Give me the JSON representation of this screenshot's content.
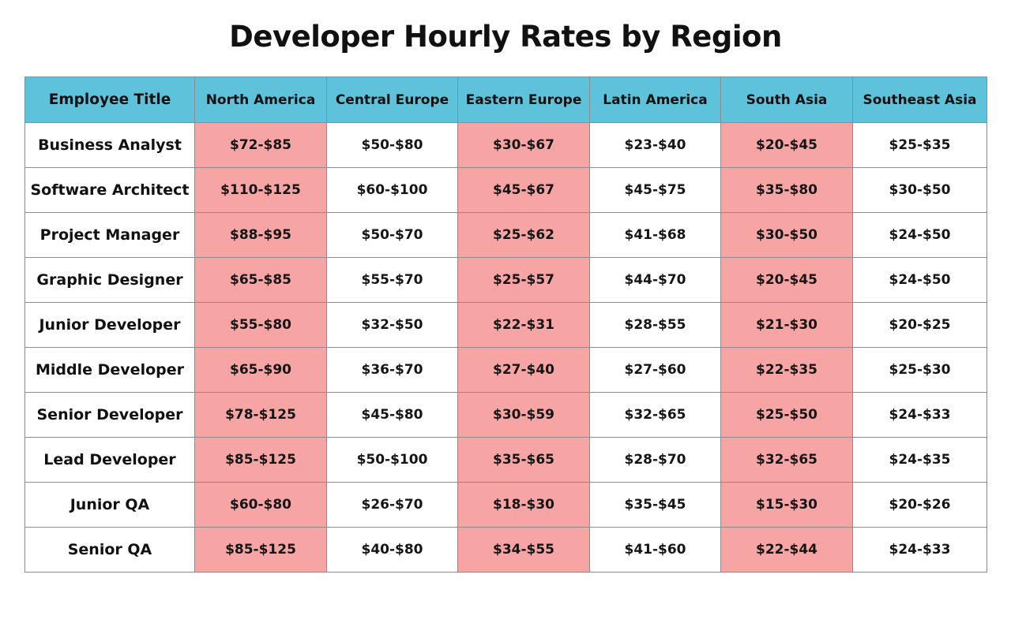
{
  "colors": {
    "header_bg": "#5ec2db",
    "highlight_bg": "#f6a4a4",
    "plain_bg": "#ffffff",
    "border": "#8c8c8c"
  },
  "chart_data": {
    "type": "table",
    "title": "Developer Hourly Rates by Region",
    "columns": [
      "Employee Title",
      "North America",
      "Central Europe",
      "Eastern Europe",
      "Latin America",
      "South Asia",
      "Southeast Asia"
    ],
    "highlighted_columns": [
      "North America",
      "Eastern Europe",
      "South Asia"
    ],
    "rows": [
      {
        "title": "Business Analyst",
        "rates": [
          "$72-$85",
          "$50-$80",
          "$30-$67",
          "$23-$40",
          "$20-$45",
          "$25-$35"
        ]
      },
      {
        "title": "Software Architect",
        "rates": [
          "$110-$125",
          "$60-$100",
          "$45-$67",
          "$45-$75",
          "$35-$80",
          "$30-$50"
        ]
      },
      {
        "title": "Project Manager",
        "rates": [
          "$88-$95",
          "$50-$70",
          "$25-$62",
          "$41-$68",
          "$30-$50",
          "$24-$50"
        ]
      },
      {
        "title": "Graphic Designer",
        "rates": [
          "$65-$85",
          "$55-$70",
          "$25-$57",
          "$44-$70",
          "$20-$45",
          "$24-$50"
        ]
      },
      {
        "title": "Junior Developer",
        "rates": [
          "$55-$80",
          "$32-$50",
          "$22-$31",
          "$28-$55",
          "$21-$30",
          "$20-$25"
        ]
      },
      {
        "title": "Middle Developer",
        "rates": [
          "$65-$90",
          "$36-$70",
          "$27-$40",
          "$27-$60",
          "$22-$35",
          "$25-$30"
        ]
      },
      {
        "title": "Senior Developer",
        "rates": [
          "$78-$125",
          "$45-$80",
          "$30-$59",
          "$32-$65",
          "$25-$50",
          "$24-$33"
        ]
      },
      {
        "title": "Lead Developer",
        "rates": [
          "$85-$125",
          "$50-$100",
          "$35-$65",
          "$28-$70",
          "$32-$65",
          "$24-$35"
        ]
      },
      {
        "title": "Junior QA",
        "rates": [
          "$60-$80",
          "$26-$70",
          "$18-$30",
          "$35-$45",
          "$15-$30",
          "$20-$26"
        ]
      },
      {
        "title": "Senior QA",
        "rates": [
          "$85-$125",
          "$40-$80",
          "$34-$55",
          "$41-$60",
          "$22-$44",
          "$24-$33"
        ]
      }
    ]
  }
}
